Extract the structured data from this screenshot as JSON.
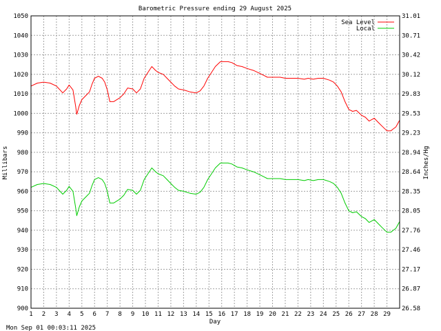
{
  "chart_data": {
    "type": "line",
    "title": "Barometric Pressure ending 29 August 2025",
    "xlabel": "Day",
    "ylabel": "Millibars",
    "y2label": "Inches/Hg",
    "footer": "Mon Sep 01 00:03:11 2025",
    "xlim": [
      1,
      30
    ],
    "ylim": [
      900,
      1050
    ],
    "y2lim": [
      26.58,
      31.01
    ],
    "x_ticks": [
      "1",
      "2",
      "3",
      "4",
      "5",
      "6",
      "7",
      "8",
      "9",
      "10",
      "11",
      "12",
      "13",
      "14",
      "15",
      "16",
      "17",
      "18",
      "19",
      "20",
      "21",
      "22",
      "23",
      "24",
      "25",
      "26",
      "27",
      "28",
      "29"
    ],
    "y_ticks": [
      "900",
      "910",
      "920",
      "930",
      "940",
      "950",
      "960",
      "970",
      "980",
      "990",
      "1000",
      "1010",
      "1020",
      "1030",
      "1040",
      "1050"
    ],
    "y2_ticks": [
      "26.58",
      "26.87",
      "27.17",
      "27.46",
      "27.76",
      "28.05",
      "28.35",
      "28.64",
      "28.94",
      "29.23",
      "29.53",
      "29.83",
      "30.12",
      "30.42",
      "30.71",
      "31.01"
    ],
    "grid": true,
    "legend_position": "top-right",
    "series": [
      {
        "name": "Sea Level",
        "color": "#ff0000",
        "x": [
          1,
          1.5,
          2,
          2.5,
          3,
          3.5,
          3.8,
          4,
          4.3,
          4.5,
          4.6,
          4.8,
          5,
          5.3,
          5.6,
          5.8,
          6,
          6.3,
          6.6,
          6.8,
          7,
          7.2,
          7.5,
          8,
          8.3,
          8.6,
          9,
          9.3,
          9.6,
          9.9,
          10.2,
          10.5,
          10.8,
          11,
          11.4,
          11.7,
          12,
          12.3,
          12.6,
          13,
          13.5,
          14,
          14.3,
          14.6,
          14.9,
          15.2,
          15.5,
          15.9,
          16.2,
          16.5,
          16.8,
          17.2,
          17.6,
          18,
          18.5,
          19,
          19.3,
          19.6,
          19.9,
          20.2,
          20.6,
          21,
          21.5,
          22,
          22.5,
          22.8,
          23.2,
          23.6,
          24,
          24.5,
          24.8,
          25.1,
          25.4,
          25.7,
          26,
          26.3,
          26.6,
          27,
          27.3,
          27.6,
          28,
          28.3,
          28.6,
          29,
          29.3,
          29.5,
          29.7,
          30
        ],
        "y": [
          1014,
          1015.5,
          1016,
          1015.5,
          1014,
          1010.5,
          1012.5,
          1014.5,
          1012,
          1004,
          999.5,
          1004,
          1007,
          1009,
          1011,
          1015,
          1018,
          1019,
          1018,
          1016,
          1012,
          1006,
          1006,
          1008,
          1010,
          1013,
          1012.5,
          1010.5,
          1012.5,
          1018,
          1021,
          1024,
          1022,
          1021,
          1020,
          1018,
          1016,
          1014,
          1012.5,
          1012,
          1011,
          1010.5,
          1011.5,
          1014,
          1018,
          1021,
          1024,
          1026.5,
          1026.5,
          1026.5,
          1026,
          1024.5,
          1024,
          1023,
          1022,
          1020.5,
          1019.5,
          1018.5,
          1018.5,
          1018.5,
          1018.5,
          1018,
          1018,
          1018,
          1017.5,
          1018,
          1017.5,
          1018,
          1018,
          1017,
          1016,
          1014,
          1011,
          1006,
          1002,
          1001,
          1001.5,
          999,
          998,
          996,
          997.5,
          995.5,
          993.5,
          991,
          991,
          992,
          993,
          996.5
        ]
      },
      {
        "name": "Local",
        "color": "#00cc00",
        "x": [
          1,
          1.5,
          2,
          2.5,
          3,
          3.5,
          3.8,
          4,
          4.3,
          4.5,
          4.6,
          4.8,
          5,
          5.3,
          5.6,
          5.8,
          6,
          6.3,
          6.6,
          6.8,
          7,
          7.2,
          7.5,
          8,
          8.3,
          8.6,
          9,
          9.3,
          9.6,
          9.9,
          10.2,
          10.5,
          10.8,
          11,
          11.4,
          11.7,
          12,
          12.3,
          12.6,
          13,
          13.5,
          14,
          14.3,
          14.6,
          14.9,
          15.2,
          15.5,
          15.9,
          16.2,
          16.5,
          16.8,
          17.2,
          17.6,
          18,
          18.5,
          19,
          19.3,
          19.6,
          19.9,
          20.2,
          20.6,
          21,
          21.5,
          22,
          22.5,
          22.8,
          23.2,
          23.6,
          24,
          24.5,
          24.8,
          25.1,
          25.4,
          25.7,
          26,
          26.3,
          26.6,
          27,
          27.3,
          27.6,
          28,
          28.3,
          28.6,
          29,
          29.3,
          29.5,
          29.7,
          30
        ],
        "y": [
          962,
          963.5,
          964,
          963.5,
          962,
          958.5,
          960.5,
          962.5,
          960,
          952,
          947.5,
          952,
          955,
          957,
          959,
          963,
          966,
          967,
          966,
          964,
          960,
          954,
          954,
          956,
          958,
          961,
          960.5,
          958.5,
          960.5,
          966,
          969,
          972,
          970,
          969,
          968,
          966,
          964,
          962,
          960.5,
          960,
          959,
          958.5,
          959.5,
          962,
          966,
          969,
          972,
          974.5,
          974.5,
          974.5,
          974,
          972.5,
          972,
          971,
          970,
          968.5,
          967.5,
          966.5,
          966.5,
          966.5,
          966.5,
          966,
          966,
          966,
          965.5,
          966,
          965.5,
          966,
          966,
          965,
          964,
          962,
          959,
          954,
          950,
          949,
          949.5,
          947,
          946,
          944,
          945.5,
          943.5,
          941.5,
          939,
          939,
          940,
          941,
          944.5
        ]
      }
    ]
  }
}
